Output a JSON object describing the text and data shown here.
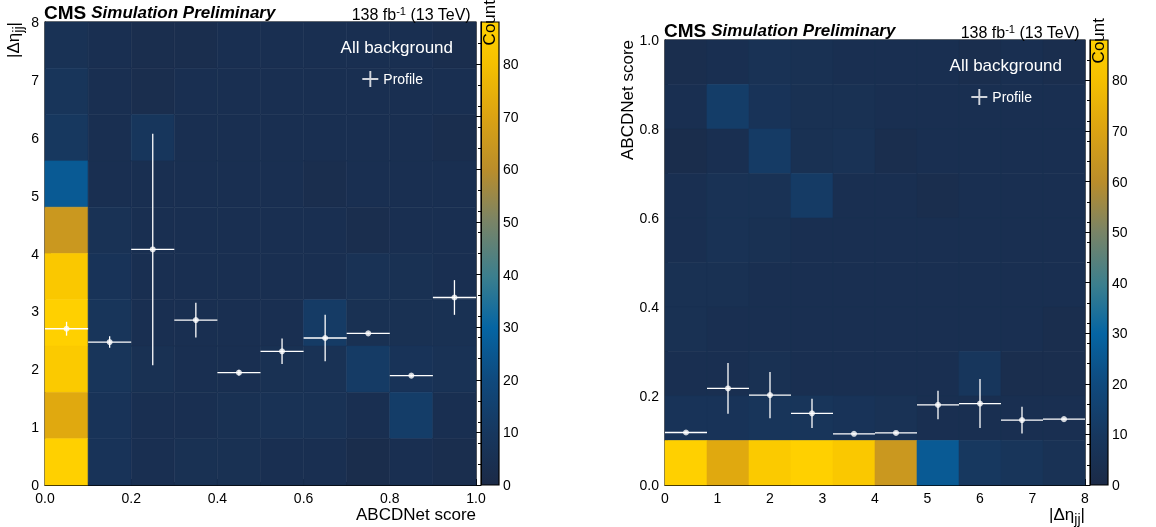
{
  "chart_data": [
    {
      "type": "heatmap",
      "title": "CMS",
      "subtitle": "Simulation Preliminary",
      "annotations": [
        "138 fb$^{-1}$ (13 TeV)"
      ],
      "xlabel": "ABCDNet score",
      "ylabel": "|Δη$_{jj}$|",
      "clabel": "Count",
      "legend_title": "All background",
      "legend": "top right",
      "grid": false,
      "xlim": [
        0,
        1
      ],
      "xticks": [
        {
          "value": 0,
          "label": "0.0"
        },
        {
          "value": 0.2,
          "label": "0.2"
        },
        {
          "value": 0.4,
          "label": "0.4"
        },
        {
          "value": 0.6,
          "label": "0.6"
        },
        {
          "value": 0.8,
          "label": "0.8"
        },
        {
          "value": 1,
          "label": "1.0"
        }
      ],
      "ylim": [
        0,
        8
      ],
      "yticks": [
        0,
        1,
        2,
        3,
        4,
        5,
        6,
        7,
        8
      ],
      "clim": [
        0,
        88
      ],
      "cticks": [
        0,
        10,
        20,
        30,
        40,
        50,
        60,
        70,
        80
      ],
      "cells": [
        [
          6,
          4,
          3,
          3,
          4,
          4,
          4,
          4,
          4,
          3
        ],
        [
          8,
          4,
          3,
          4,
          4,
          4,
          4,
          4,
          4,
          4
        ],
        [
          10,
          4,
          9,
          4,
          4,
          4,
          4,
          4,
          4,
          3
        ],
        [
          26,
          4,
          4,
          4,
          4,
          4,
          3,
          4,
          4,
          4
        ],
        [
          65,
          6,
          4,
          4,
          4,
          4,
          4,
          3,
          4,
          4
        ],
        [
          84,
          7,
          4,
          4,
          4,
          4,
          4,
          6,
          5,
          4
        ],
        [
          88,
          8,
          4,
          4,
          4,
          4,
          12,
          5,
          5,
          5
        ],
        [
          85,
          8,
          5,
          4,
          4,
          5,
          6,
          12,
          7,
          6
        ],
        [
          72,
          7,
          4,
          4,
          5,
          6,
          6,
          4,
          13,
          4
        ],
        [
          88,
          7,
          4,
          5,
          5,
          4,
          4,
          2,
          4,
          3
        ]
      ],
      "series": [
        {
          "type": "scatter",
          "name": "Profile",
          "color": "#ffffff",
          "marker": "circle",
          "x": [
            0.05,
            0.15,
            0.25,
            0.35,
            0.45,
            0.55,
            0.65,
            0.75,
            0.85,
            0.95
          ],
          "values": [
            2.7,
            2.47,
            4.07,
            2.85,
            1.94,
            2.31,
            2.54,
            2.62,
            1.89,
            3.24
          ],
          "errors": [
            0.12,
            0.1,
            2.0,
            0.3,
            0.05,
            0.22,
            0.4,
            0.02,
            0.02,
            0.3
          ],
          "xerrors": [
            0.05,
            0.05,
            0.05,
            0.05,
            0.05,
            0.05,
            0.05,
            0.05,
            0.05,
            0.05
          ]
        }
      ]
    },
    {
      "type": "heatmap",
      "title": "CMS",
      "subtitle": "Simulation Preliminary",
      "annotations": [
        "138 fb$^{-1}$ (13 TeV)"
      ],
      "xlabel": "|Δη$_{jj}$|",
      "ylabel": "ABCDNet score",
      "clabel": "Count",
      "legend_title": "All background",
      "legend": "top right",
      "grid": false,
      "xlim": [
        0,
        8
      ],
      "xticks": [
        0,
        1,
        2,
        3,
        4,
        5,
        6,
        7,
        8
      ],
      "ylim": [
        0,
        1
      ],
      "yticks": [
        {
          "value": 0,
          "label": "0.0"
        },
        {
          "value": 0.2,
          "label": "0.2"
        },
        {
          "value": 0.4,
          "label": "0.4"
        },
        {
          "value": 0.6,
          "label": "0.6"
        },
        {
          "value": 0.8,
          "label": "0.8"
        },
        {
          "value": 1,
          "label": "1.0"
        }
      ],
      "clim": [
        0,
        88
      ],
      "cticks": [
        0,
        10,
        20,
        30,
        40,
        50,
        60,
        70,
        80
      ],
      "cells": [
        [
          3,
          4,
          6,
          5,
          4,
          4,
          4,
          3,
          4,
          3
        ],
        [
          4,
          13,
          7,
          5,
          5,
          4,
          4,
          4,
          4,
          4
        ],
        [
          2,
          4,
          12,
          5,
          6,
          3,
          4,
          4,
          4,
          4
        ],
        [
          4,
          6,
          6,
          12,
          4,
          4,
          3,
          4,
          4,
          4
        ],
        [
          4,
          6,
          5,
          4,
          4,
          4,
          4,
          4,
          4,
          4
        ],
        [
          5,
          5,
          4,
          4,
          4,
          4,
          4,
          4,
          4,
          4
        ],
        [
          5,
          4,
          4,
          4,
          4,
          4,
          4,
          4,
          4,
          3
        ],
        [
          4,
          4,
          5,
          4,
          4,
          4,
          4,
          9,
          3,
          3
        ],
        [
          7,
          7,
          8,
          8,
          7,
          6,
          4,
          4,
          4,
          4
        ],
        [
          88,
          72,
          85,
          88,
          84,
          65,
          26,
          10,
          8,
          6
        ]
      ],
      "series": [
        {
          "type": "scatter",
          "name": "Profile",
          "color": "#ffffff",
          "marker": "circle",
          "x": [
            0.4,
            1.2,
            2.0,
            2.8,
            3.6,
            4.4,
            5.2,
            6.0,
            6.8,
            7.6
          ],
          "values": [
            0.118,
            0.217,
            0.202,
            0.161,
            0.115,
            0.117,
            0.18,
            0.183,
            0.146,
            0.148
          ],
          "errors": [
            0.003,
            0.057,
            0.052,
            0.033,
            0.002,
            0.003,
            0.032,
            0.055,
            0.03,
            0.002
          ],
          "xerrors": [
            0.4,
            0.4,
            0.4,
            0.4,
            0.4,
            0.4,
            0.4,
            0.4,
            0.4,
            0.4
          ]
        }
      ]
    }
  ]
}
